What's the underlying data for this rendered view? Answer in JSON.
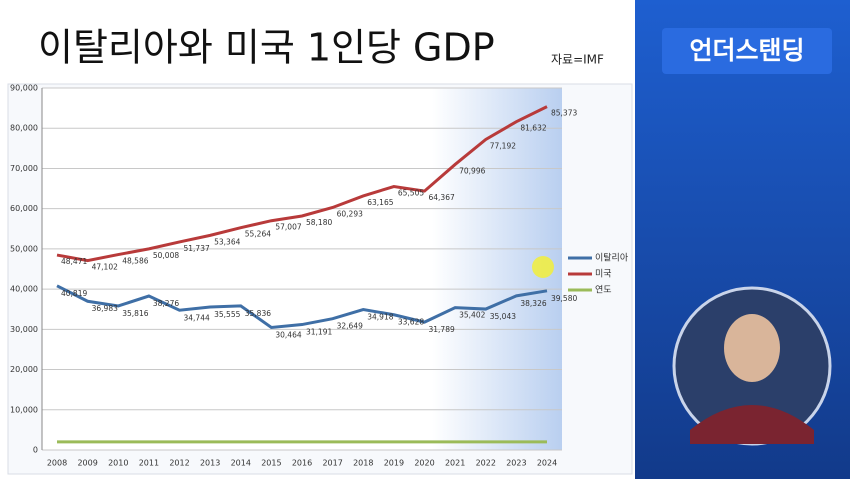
{
  "header": {
    "title": "이탈리아와 미국 1인당 GDP",
    "source": "자료=IMF",
    "brand": "언더스탠딩"
  },
  "chart_data": {
    "type": "line",
    "categories": [
      "2008",
      "2009",
      "2010",
      "2011",
      "2012",
      "2013",
      "2014",
      "2015",
      "2016",
      "2017",
      "2018",
      "2019",
      "2020",
      "2021",
      "2022",
      "2023",
      "2024"
    ],
    "ylim": [
      0,
      90000
    ],
    "yticks": [
      0,
      {
        "value": 10000,
        "label": "10,000"
      },
      {
        "value": 20000,
        "label": "20,000"
      },
      {
        "value": 30000,
        "label": "30,000"
      },
      {
        "value": 40000,
        "label": "40,000"
      },
      {
        "value": 50000,
        "label": "50,000"
      },
      {
        "value": 60000,
        "label": "60,000"
      },
      {
        "value": 70000,
        "label": "70,000"
      },
      {
        "value": 80000,
        "label": "80,000"
      },
      {
        "value": 90000,
        "label": "90,000"
      }
    ],
    "grid": true,
    "legend": "right",
    "series": [
      {
        "name": "이탈리아",
        "color": "#3f6fa6",
        "values": [
          40819,
          36983,
          35816,
          38276,
          34744,
          35555,
          35836,
          30464,
          31191,
          32649,
          34918,
          33628,
          31789,
          35402,
          35043,
          38326,
          39580
        ],
        "value_labels": [
          "40,819",
          "36,983",
          "35,816",
          "38,276",
          "34,744",
          "35,555",
          "35,836",
          "30,464",
          "31,191",
          "32,649",
          "34,918",
          "33,628",
          "31,789",
          "35,402",
          "35,043",
          "38,326",
          "39,580"
        ]
      },
      {
        "name": "미국",
        "color": "#b83a3a",
        "values": [
          48471,
          47102,
          48586,
          50008,
          51737,
          53364,
          55264,
          57007,
          58180,
          60293,
          63165,
          65505,
          64367,
          70996,
          77192,
          81632,
          85373
        ],
        "value_labels": [
          "48,471",
          "47,102",
          "48,586",
          "50,008",
          "51,737",
          "53,364",
          "55,264",
          "57,007",
          "58,180",
          "60,293",
          "63,165",
          "65,505",
          "64,367",
          "70,996",
          "77,192",
          "81,632",
          "85,373"
        ]
      },
      {
        "name": "연도",
        "color": "#9bbb59",
        "values": [
          2008,
          2009,
          2010,
          2011,
          2012,
          2013,
          2014,
          2015,
          2016,
          2017,
          2018,
          2019,
          2020,
          2021,
          2022,
          2023,
          2024
        ]
      }
    ]
  }
}
